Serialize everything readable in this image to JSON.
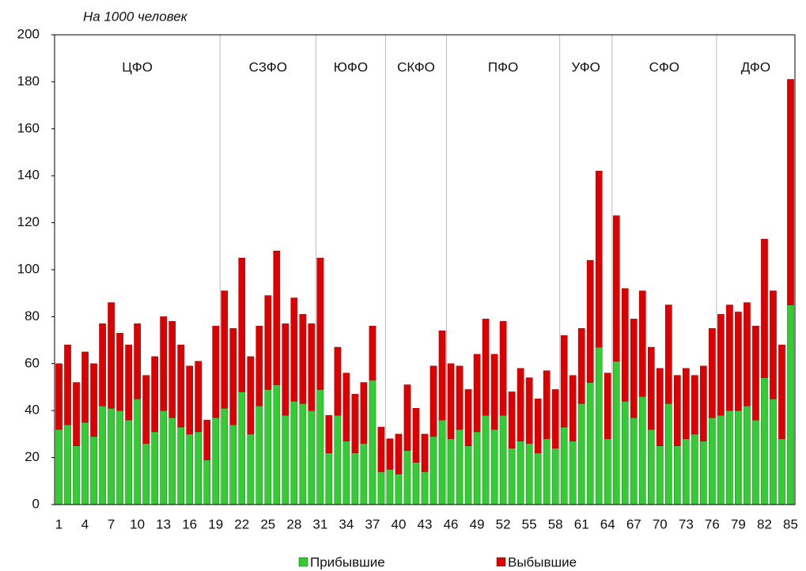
{
  "chart_data": {
    "type": "stacked-bar",
    "title": "На 1000 человек",
    "categories": [
      1,
      null,
      null,
      4,
      null,
      null,
      7,
      null,
      null,
      10,
      null,
      null,
      13,
      null,
      null,
      16,
      null,
      null,
      19,
      null,
      null,
      22,
      null,
      null,
      25,
      null,
      null,
      28,
      null,
      null,
      31,
      null,
      null,
      34,
      null,
      null,
      37,
      null,
      null,
      40,
      null,
      null,
      43,
      null,
      null,
      46,
      null,
      null,
      49,
      null,
      null,
      52,
      null,
      null,
      55,
      null,
      null,
      58,
      null,
      null,
      61,
      null,
      null,
      64,
      null,
      null,
      67,
      null,
      null,
      70,
      null,
      null,
      73,
      null,
      null,
      76,
      null,
      null,
      79,
      null,
      null,
      82,
      null,
      null,
      85
    ],
    "series": [
      {
        "name": "Прибывшие",
        "color": "#33cc33",
        "values": [
          32,
          34,
          25,
          35,
          29,
          42,
          41,
          40,
          36,
          45,
          26,
          31,
          40,
          37,
          33,
          30,
          31,
          19,
          37,
          41,
          34,
          48,
          30,
          42,
          49,
          51,
          38,
          44,
          43,
          40,
          49,
          22,
          38,
          27,
          22,
          26,
          53,
          14,
          15,
          13,
          23,
          18,
          14,
          29,
          36,
          28,
          32,
          25,
          31,
          38,
          32,
          38,
          24,
          27,
          26,
          22,
          28,
          24,
          33,
          27,
          43,
          52,
          67,
          28,
          61,
          44,
          37,
          46,
          32,
          25,
          43,
          25,
          28,
          30,
          27,
          37,
          38,
          40,
          40,
          42,
          36,
          54,
          45,
          28,
          85
        ]
      },
      {
        "name": "Выбывшие",
        "color": "#dd0000",
        "values": [
          28,
          34,
          27,
          30,
          31,
          35,
          45,
          33,
          32,
          32,
          29,
          32,
          40,
          41,
          35,
          29,
          30,
          17,
          39,
          50,
          41,
          57,
          33,
          34,
          40,
          57,
          39,
          44,
          38,
          37,
          56,
          16,
          29,
          29,
          25,
          26,
          23,
          19,
          13,
          17,
          28,
          23,
          16,
          30,
          38,
          32,
          27,
          24,
          33,
          41,
          32,
          40,
          24,
          31,
          28,
          23,
          29,
          25,
          39,
          28,
          32,
          52,
          75,
          28,
          62,
          48,
          42,
          45,
          35,
          33,
          42,
          30,
          30,
          25,
          32,
          38,
          43,
          45,
          42,
          44,
          40,
          59,
          46,
          40,
          96
        ]
      }
    ],
    "regions": [
      {
        "name": "ЦФО",
        "last": 19
      },
      {
        "name": "СЗФО",
        "last": 30
      },
      {
        "name": "ЮФО",
        "last": 38
      },
      {
        "name": "СКФО",
        "last": 45
      },
      {
        "name": "ПФО",
        "last": 58
      },
      {
        "name": "УФО",
        "last": 64
      },
      {
        "name": "СФО",
        "last": 76
      },
      {
        "name": "ДФО",
        "last": 85
      }
    ],
    "ylim": [
      0,
      200
    ],
    "yticks": [
      0,
      20,
      40,
      60,
      80,
      100,
      120,
      140,
      160,
      180,
      200
    ]
  }
}
